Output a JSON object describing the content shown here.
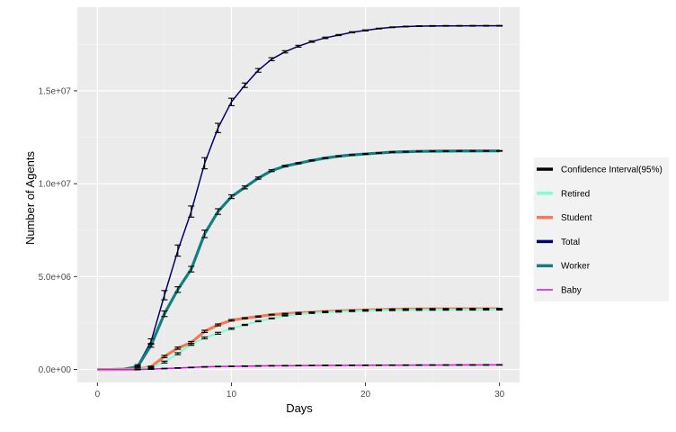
{
  "chart_data": {
    "type": "line",
    "title": "",
    "xlabel": "Days",
    "ylabel": "Number of Agents",
    "xlim": [
      -1.5,
      31.5
    ],
    "ylim": [
      -700000,
      19500000
    ],
    "x_ticks": [
      0,
      10,
      20,
      30
    ],
    "x_tick_labels": [
      "0",
      "10",
      "20",
      "30"
    ],
    "y_ticks": [
      0,
      5000000,
      10000000,
      15000000
    ],
    "y_tick_labels": [
      "0.0e+00",
      "5.0e+06",
      "1.0e+07",
      "1.5e+07"
    ],
    "grid": true,
    "legend_position": "right",
    "legend": [
      {
        "label": "Confidence Interval(95%)",
        "color": "#000000"
      },
      {
        "label": "Retired",
        "color": "#7fffd4"
      },
      {
        "label": "Student",
        "color": "#f37a56"
      },
      {
        "label": "Total",
        "color": "#00006e"
      },
      {
        "label": "Worker",
        "color": "#128080"
      },
      {
        "label": "Baby",
        "color": "#e010e0"
      }
    ],
    "x": [
      0,
      1,
      2,
      3,
      4,
      5,
      6,
      7,
      8,
      9,
      10,
      11,
      12,
      13,
      14,
      15,
      16,
      17,
      18,
      19,
      20,
      21,
      22,
      23,
      24,
      25,
      26,
      27,
      28,
      29,
      30
    ],
    "series": [
      {
        "name": "Total",
        "color": "#00006e",
        "values": [
          0,
          0,
          20000,
          200000,
          1500000,
          4000000,
          6400000,
          8500000,
          11100000,
          13000000,
          14400000,
          15300000,
          16100000,
          16700000,
          17100000,
          17400000,
          17650000,
          17850000,
          18000000,
          18150000,
          18250000,
          18350000,
          18420000,
          18460000,
          18480000,
          18490000,
          18495000,
          18497000,
          18498000,
          18499000,
          18500000
        ],
        "error": [
          0,
          0,
          20000,
          60000,
          150000,
          250000,
          300000,
          300000,
          300000,
          250000,
          200000,
          120000,
          100000,
          80000,
          60000,
          50000,
          40000,
          40000,
          30000,
          30000,
          30000,
          20000,
          20000,
          20000,
          20000,
          20000,
          20000,
          20000,
          20000,
          20000,
          20000
        ]
      },
      {
        "name": "Worker",
        "color": "#128080",
        "values": [
          0,
          0,
          15000,
          150000,
          1300000,
          3000000,
          4300000,
          5400000,
          7300000,
          8500000,
          9300000,
          9800000,
          10300000,
          10700000,
          10950000,
          11100000,
          11250000,
          11380000,
          11480000,
          11550000,
          11600000,
          11650000,
          11700000,
          11720000,
          11740000,
          11750000,
          11755000,
          11760000,
          11762000,
          11764000,
          11765000
        ],
        "error": [
          0,
          0,
          10000,
          40000,
          100000,
          150000,
          150000,
          150000,
          200000,
          150000,
          100000,
          80000,
          60000,
          50000,
          40000,
          30000,
          30000,
          20000,
          20000,
          20000,
          20000,
          20000,
          20000,
          20000,
          20000,
          20000,
          20000,
          20000,
          20000,
          20000,
          20000
        ]
      },
      {
        "name": "Student",
        "color": "#f37a56",
        "values": [
          0,
          0,
          0,
          20000,
          150000,
          700000,
          1150000,
          1450000,
          2050000,
          2400000,
          2650000,
          2760000,
          2850000,
          2950000,
          3000000,
          3050000,
          3080000,
          3120000,
          3150000,
          3180000,
          3200000,
          3220000,
          3240000,
          3250000,
          3255000,
          3260000,
          3262000,
          3264000,
          3266000,
          3268000,
          3270000
        ],
        "error": [
          0,
          0,
          0,
          10000,
          30000,
          60000,
          60000,
          60000,
          60000,
          50000,
          40000,
          30000,
          30000,
          20000,
          20000,
          20000,
          20000,
          20000,
          20000,
          20000,
          20000,
          20000,
          20000,
          20000,
          20000,
          20000,
          20000,
          20000,
          20000,
          20000,
          20000
        ]
      },
      {
        "name": "Retired",
        "color": "#7fffd4",
        "values": [
          0,
          0,
          0,
          10000,
          100000,
          400000,
          850000,
          1350000,
          1700000,
          1950000,
          2200000,
          2400000,
          2600000,
          2750000,
          2900000,
          2980000,
          3040000,
          3080000,
          3110000,
          3140000,
          3160000,
          3180000,
          3190000,
          3200000,
          3205000,
          3210000,
          3212000,
          3214000,
          3216000,
          3218000,
          3220000
        ],
        "error": [
          0,
          0,
          0,
          10000,
          30000,
          50000,
          50000,
          50000,
          50000,
          50000,
          40000,
          30000,
          30000,
          20000,
          20000,
          20000,
          20000,
          20000,
          20000,
          20000,
          20000,
          20000,
          20000,
          20000,
          20000,
          20000,
          20000,
          20000,
          20000,
          20000,
          20000
        ]
      },
      {
        "name": "Baby",
        "color": "#e010e0",
        "values": [
          0,
          0,
          0,
          0,
          20000,
          50000,
          80000,
          110000,
          140000,
          160000,
          170000,
          180000,
          190000,
          200000,
          205000,
          210000,
          215000,
          220000,
          222000,
          225000,
          228000,
          230000,
          232000,
          234000,
          236000,
          238000,
          240000,
          242000,
          244000,
          246000,
          248000
        ],
        "error": [
          0,
          0,
          0,
          0,
          10000,
          10000,
          10000,
          10000,
          10000,
          10000,
          10000,
          10000,
          10000,
          10000,
          10000,
          10000,
          10000,
          10000,
          10000,
          10000,
          10000,
          10000,
          10000,
          10000,
          10000,
          10000,
          10000,
          10000,
          10000,
          10000,
          10000
        ]
      }
    ]
  }
}
